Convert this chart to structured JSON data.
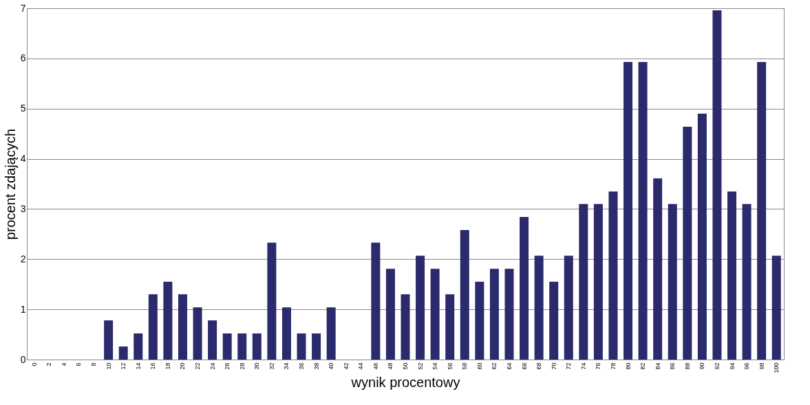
{
  "chart_data": {
    "type": "bar",
    "xlabel": "wynik procentowy",
    "ylabel": "procent zdających",
    "categories": [
      "0",
      "2",
      "4",
      "6",
      "8",
      "10",
      "12",
      "14",
      "16",
      "18",
      "20",
      "22",
      "24",
      "26",
      "28",
      "30",
      "32",
      "34",
      "36",
      "38",
      "40",
      "42",
      "44",
      "46",
      "48",
      "50",
      "52",
      "54",
      "56",
      "58",
      "60",
      "62",
      "64",
      "66",
      "68",
      "70",
      "72",
      "74",
      "76",
      "78",
      "80",
      "82",
      "84",
      "86",
      "88",
      "90",
      "92",
      "94",
      "96",
      "98",
      "100"
    ],
    "series": [
      {
        "color": "#2a2a6c",
        "values": [
          0,
          0,
          0,
          0,
          0,
          0.78,
          0.26,
          0.52,
          1.3,
          1.55,
          1.3,
          1.04,
          0.78,
          0.52,
          0.52,
          0.52,
          2.33,
          1.04,
          0.52,
          0.52,
          1.04,
          0,
          0,
          2.33,
          1.81,
          1.3,
          2.07,
          1.81,
          1.3,
          2.58,
          1.55,
          1.81,
          1.81,
          2.84,
          2.07,
          1.55,
          2.07,
          3.1,
          3.1,
          3.35,
          5.93,
          5.93,
          3.61,
          3.1,
          4.64,
          4.9,
          6.96,
          3.35,
          3.1,
          5.93,
          2.07
        ]
      }
    ],
    "ylim": [
      0,
      7
    ],
    "yticks": [
      0,
      1,
      2,
      3,
      4,
      5,
      6,
      7
    ],
    "grid": "y"
  }
}
